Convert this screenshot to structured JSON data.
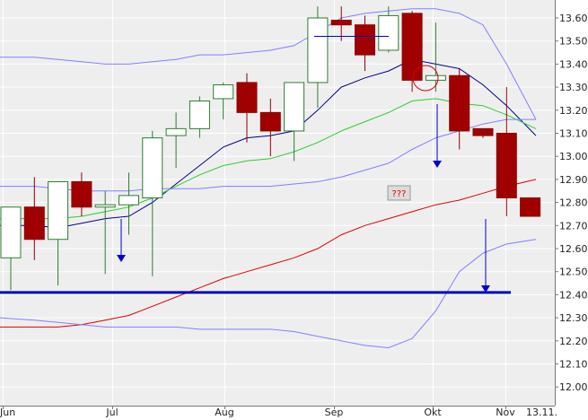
{
  "chart_data": {
    "type": "candlestick",
    "x_labels": [
      "Jun",
      "Jul",
      "Aug",
      "Sep",
      "Okt",
      "Nov",
      "13.11."
    ],
    "y_ticks": [
      "13.60",
      "13.50",
      "13.40",
      "13.30",
      "13.20",
      "13.10",
      "13.00",
      "12.90",
      "12.80",
      "12.70",
      "12.60",
      "12.50",
      "12.40",
      "12.30",
      "12.20",
      "12.10",
      "12.00"
    ],
    "ylim": [
      12.0,
      13.65
    ],
    "grid": true,
    "annotation_label": "???",
    "candles": [
      {
        "open": 12.56,
        "high": 12.78,
        "low": 12.42,
        "close": 12.78
      },
      {
        "open": 12.78,
        "high": 12.91,
        "low": 12.55,
        "close": 12.64
      },
      {
        "open": 12.64,
        "high": 12.89,
        "low": 12.44,
        "close": 12.89
      },
      {
        "open": 12.89,
        "high": 12.93,
        "low": 12.74,
        "close": 12.78
      },
      {
        "open": 12.78,
        "high": 12.85,
        "low": 12.49,
        "close": 12.79
      },
      {
        "open": 12.79,
        "high": 12.93,
        "low": 12.66,
        "close": 12.83
      },
      {
        "open": 12.82,
        "high": 13.11,
        "low": 12.48,
        "close": 13.08
      },
      {
        "open": 13.09,
        "high": 13.19,
        "low": 12.95,
        "close": 13.12
      },
      {
        "open": 13.12,
        "high": 13.26,
        "low": 13.08,
        "close": 13.24
      },
      {
        "open": 13.25,
        "high": 13.32,
        "low": 13.16,
        "close": 13.31
      },
      {
        "open": 13.32,
        "high": 13.36,
        "low": 13.06,
        "close": 13.19
      },
      {
        "open": 13.19,
        "high": 13.25,
        "low": 13.0,
        "close": 13.11
      },
      {
        "open": 13.11,
        "high": 13.32,
        "low": 12.98,
        "close": 13.32
      },
      {
        "open": 13.32,
        "high": 13.65,
        "low": 13.21,
        "close": 13.6
      },
      {
        "open": 13.59,
        "high": 13.65,
        "low": 13.5,
        "close": 13.57
      },
      {
        "open": 13.57,
        "high": 13.61,
        "low": 13.37,
        "close": 13.44
      },
      {
        "open": 13.46,
        "high": 13.65,
        "low": 13.45,
        "close": 13.61
      },
      {
        "open": 13.62,
        "high": 13.63,
        "low": 13.28,
        "close": 13.33
      },
      {
        "open": 13.33,
        "high": 13.58,
        "low": 13.28,
        "close": 13.35
      },
      {
        "open": 13.35,
        "high": 13.38,
        "low": 13.03,
        "close": 13.11
      },
      {
        "open": 13.12,
        "high": 13.12,
        "low": 13.08,
        "close": 13.09
      },
      {
        "open": 13.1,
        "high": 13.3,
        "low": 12.74,
        "close": 12.82
      },
      {
        "open": 12.82,
        "high": 12.82,
        "low": 12.74,
        "close": 12.74
      }
    ],
    "series": [
      {
        "color": "#00008b",
        "values": [
          12.7,
          12.7,
          12.69,
          12.71,
          12.73,
          12.74,
          12.8,
          12.88,
          12.96,
          13.04,
          13.08,
          13.09,
          13.11,
          13.2,
          13.3,
          13.34,
          13.37,
          13.42,
          13.4,
          13.38,
          13.31,
          13.22,
          13.09
        ]
      },
      {
        "color": "#2ecc2e",
        "values": [
          12.73,
          12.73,
          12.73,
          12.74,
          12.76,
          12.78,
          12.82,
          12.87,
          12.92,
          12.96,
          12.98,
          12.99,
          13.02,
          13.06,
          13.11,
          13.15,
          13.19,
          13.24,
          13.25,
          13.23,
          13.22,
          13.18,
          13.12
        ]
      },
      {
        "color": "#dd0000",
        "values": [
          12.26,
          12.26,
          12.26,
          12.27,
          12.29,
          12.31,
          12.35,
          12.39,
          12.43,
          12.47,
          12.5,
          12.53,
          12.56,
          12.6,
          12.66,
          12.7,
          12.73,
          12.76,
          12.79,
          12.81,
          12.84,
          12.87,
          12.9
        ]
      },
      {
        "color": "#8080ff",
        "values": [
          13.43,
          13.43,
          13.42,
          13.41,
          13.4,
          13.4,
          13.41,
          13.42,
          13.44,
          13.44,
          13.45,
          13.46,
          13.48,
          13.54,
          13.6,
          13.62,
          13.63,
          13.64,
          13.64,
          13.62,
          13.57,
          13.4,
          13.16
        ]
      },
      {
        "color": "#8080ff",
        "values": [
          12.87,
          12.87,
          12.86,
          12.85,
          12.85,
          12.85,
          12.86,
          12.86,
          12.86,
          12.87,
          12.87,
          12.87,
          12.88,
          12.89,
          12.91,
          12.94,
          12.97,
          13.03,
          13.08,
          13.11,
          13.14,
          13.16,
          13.16
        ]
      },
      {
        "color": "#8080ff",
        "values": [
          12.3,
          12.29,
          12.28,
          12.27,
          12.26,
          12.26,
          12.26,
          12.26,
          12.25,
          12.25,
          12.25,
          12.25,
          12.24,
          12.22,
          12.2,
          12.18,
          12.17,
          12.21,
          12.33,
          12.5,
          12.58,
          12.62,
          12.64
        ]
      }
    ],
    "horizontal_line": {
      "value": 12.41,
      "color": "#0000cc"
    },
    "resistance_segment": {
      "value": 13.52,
      "color": "#0000cc"
    },
    "arrow_color": "#0000cc",
    "annotation_color": "#dd0000"
  }
}
